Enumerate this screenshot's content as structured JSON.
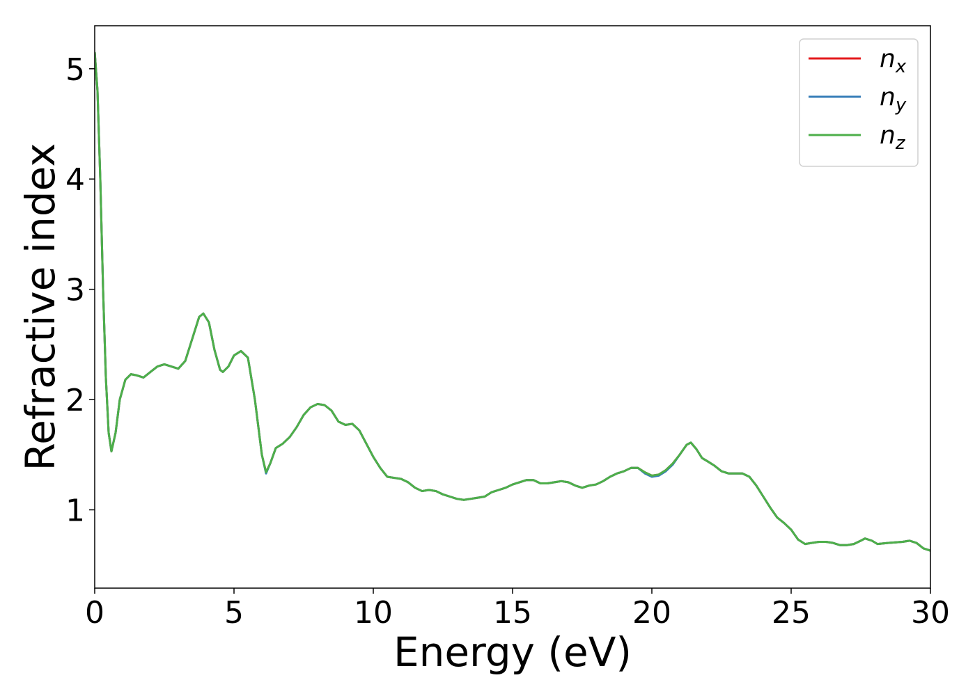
{
  "chart_data": {
    "type": "line",
    "x_label": "Energy (eV)",
    "y_label": "Refractive index",
    "x": [
      0,
      0.1,
      0.2,
      0.3,
      0.4,
      0.5,
      0.6,
      0.75,
      0.9,
      1.1,
      1.3,
      1.5,
      1.75,
      2.0,
      2.25,
      2.5,
      2.75,
      3.0,
      3.25,
      3.5,
      3.75,
      3.9,
      4.1,
      4.3,
      4.5,
      4.6,
      4.8,
      5.0,
      5.25,
      5.5,
      5.75,
      6.0,
      6.15,
      6.3,
      6.5,
      6.75,
      7.0,
      7.25,
      7.5,
      7.75,
      8.0,
      8.25,
      8.5,
      8.75,
      9.0,
      9.25,
      9.5,
      9.75,
      10.0,
      10.25,
      10.5,
      10.75,
      11.0,
      11.25,
      11.5,
      11.75,
      12.0,
      12.25,
      12.5,
      12.75,
      13.0,
      13.25,
      13.5,
      13.75,
      14.0,
      14.25,
      14.5,
      14.75,
      15.0,
      15.25,
      15.5,
      15.75,
      16.0,
      16.25,
      16.5,
      16.75,
      17.0,
      17.25,
      17.5,
      17.75,
      18.0,
      18.25,
      18.5,
      18.75,
      19.0,
      19.25,
      19.5,
      19.75,
      20.0,
      20.25,
      20.5,
      20.75,
      21.0,
      21.25,
      21.4,
      21.6,
      21.8,
      22.0,
      22.25,
      22.5,
      22.75,
      23.0,
      23.25,
      23.5,
      23.75,
      24.0,
      24.25,
      24.5,
      24.75,
      25.0,
      25.25,
      25.5,
      25.75,
      26.0,
      26.25,
      26.5,
      26.75,
      27.0,
      27.25,
      27.5,
      27.65,
      27.9,
      28.1,
      28.5,
      29.0,
      29.25,
      29.5,
      29.75,
      30.0
    ],
    "series": [
      {
        "name": "nx",
        "color": "#e41a1c",
        "values": [
          5.15,
          4.8,
          4.0,
          3.0,
          2.2,
          1.7,
          1.53,
          1.7,
          2.0,
          2.18,
          2.23,
          2.22,
          2.2,
          2.25,
          2.3,
          2.32,
          2.3,
          2.28,
          2.35,
          2.55,
          2.75,
          2.78,
          2.7,
          2.45,
          2.27,
          2.25,
          2.3,
          2.4,
          2.44,
          2.38,
          2.0,
          1.5,
          1.34,
          1.42,
          1.56,
          1.6,
          1.66,
          1.75,
          1.86,
          1.93,
          1.96,
          1.95,
          1.9,
          1.8,
          1.77,
          1.78,
          1.72,
          1.6,
          1.48,
          1.38,
          1.3,
          1.29,
          1.28,
          1.25,
          1.2,
          1.17,
          1.18,
          1.17,
          1.14,
          1.12,
          1.1,
          1.09,
          1.1,
          1.11,
          1.12,
          1.16,
          1.18,
          1.2,
          1.23,
          1.25,
          1.27,
          1.27,
          1.24,
          1.24,
          1.25,
          1.26,
          1.25,
          1.22,
          1.2,
          1.22,
          1.23,
          1.26,
          1.3,
          1.33,
          1.35,
          1.38,
          1.38,
          1.34,
          1.31,
          1.32,
          1.36,
          1.42,
          1.5,
          1.59,
          1.61,
          1.55,
          1.47,
          1.44,
          1.4,
          1.35,
          1.33,
          1.33,
          1.33,
          1.3,
          1.22,
          1.12,
          1.02,
          0.93,
          0.88,
          0.82,
          0.73,
          0.69,
          0.7,
          0.71,
          0.71,
          0.7,
          0.68,
          0.68,
          0.69,
          0.72,
          0.74,
          0.72,
          0.69,
          0.7,
          0.71,
          0.72,
          0.7,
          0.65,
          0.63
        ]
      },
      {
        "name": "ny",
        "color": "#377eb8",
        "values": [
          5.15,
          4.8,
          4.0,
          3.0,
          2.2,
          1.7,
          1.53,
          1.7,
          2.0,
          2.18,
          2.23,
          2.22,
          2.2,
          2.25,
          2.3,
          2.32,
          2.3,
          2.28,
          2.35,
          2.55,
          2.75,
          2.78,
          2.7,
          2.45,
          2.27,
          2.25,
          2.3,
          2.4,
          2.44,
          2.38,
          2.0,
          1.5,
          1.33,
          1.42,
          1.56,
          1.6,
          1.66,
          1.75,
          1.86,
          1.93,
          1.96,
          1.95,
          1.9,
          1.8,
          1.77,
          1.78,
          1.72,
          1.6,
          1.48,
          1.38,
          1.3,
          1.29,
          1.28,
          1.25,
          1.2,
          1.17,
          1.18,
          1.17,
          1.14,
          1.12,
          1.1,
          1.09,
          1.1,
          1.11,
          1.12,
          1.16,
          1.18,
          1.2,
          1.23,
          1.25,
          1.27,
          1.27,
          1.24,
          1.24,
          1.25,
          1.26,
          1.25,
          1.22,
          1.2,
          1.22,
          1.23,
          1.26,
          1.3,
          1.33,
          1.35,
          1.38,
          1.38,
          1.33,
          1.3,
          1.31,
          1.35,
          1.41,
          1.5,
          1.59,
          1.61,
          1.55,
          1.47,
          1.44,
          1.4,
          1.35,
          1.33,
          1.33,
          1.33,
          1.3,
          1.22,
          1.12,
          1.02,
          0.93,
          0.88,
          0.82,
          0.73,
          0.69,
          0.7,
          0.71,
          0.71,
          0.7,
          0.68,
          0.68,
          0.69,
          0.72,
          0.74,
          0.72,
          0.69,
          0.7,
          0.71,
          0.72,
          0.7,
          0.65,
          0.63
        ]
      },
      {
        "name": "nz",
        "color": "#4daf4a",
        "values": [
          5.15,
          4.8,
          4.0,
          3.0,
          2.2,
          1.7,
          1.53,
          1.7,
          2.0,
          2.18,
          2.23,
          2.22,
          2.2,
          2.25,
          2.3,
          2.32,
          2.3,
          2.28,
          2.35,
          2.55,
          2.75,
          2.78,
          2.7,
          2.45,
          2.27,
          2.25,
          2.3,
          2.4,
          2.44,
          2.38,
          2.0,
          1.5,
          1.34,
          1.42,
          1.56,
          1.6,
          1.66,
          1.75,
          1.86,
          1.93,
          1.96,
          1.95,
          1.9,
          1.8,
          1.77,
          1.78,
          1.72,
          1.6,
          1.48,
          1.38,
          1.3,
          1.29,
          1.28,
          1.25,
          1.2,
          1.17,
          1.18,
          1.17,
          1.14,
          1.12,
          1.1,
          1.09,
          1.1,
          1.11,
          1.12,
          1.16,
          1.18,
          1.2,
          1.23,
          1.25,
          1.27,
          1.27,
          1.24,
          1.24,
          1.25,
          1.26,
          1.25,
          1.22,
          1.2,
          1.22,
          1.23,
          1.26,
          1.3,
          1.33,
          1.35,
          1.38,
          1.38,
          1.34,
          1.31,
          1.32,
          1.36,
          1.42,
          1.5,
          1.59,
          1.61,
          1.55,
          1.47,
          1.44,
          1.4,
          1.35,
          1.33,
          1.33,
          1.33,
          1.3,
          1.22,
          1.12,
          1.02,
          0.93,
          0.88,
          0.82,
          0.73,
          0.69,
          0.7,
          0.71,
          0.71,
          0.7,
          0.68,
          0.68,
          0.69,
          0.72,
          0.74,
          0.72,
          0.69,
          0.7,
          0.71,
          0.72,
          0.7,
          0.65,
          0.63
        ]
      }
    ],
    "xlim": [
      0,
      30
    ],
    "xticks": [
      0,
      5,
      10,
      15,
      20,
      25,
      30
    ],
    "ylim": [
      0.29,
      5.39
    ],
    "yticks": [
      1,
      2,
      3,
      4,
      5
    ],
    "grid": false,
    "legend": "upper right"
  }
}
